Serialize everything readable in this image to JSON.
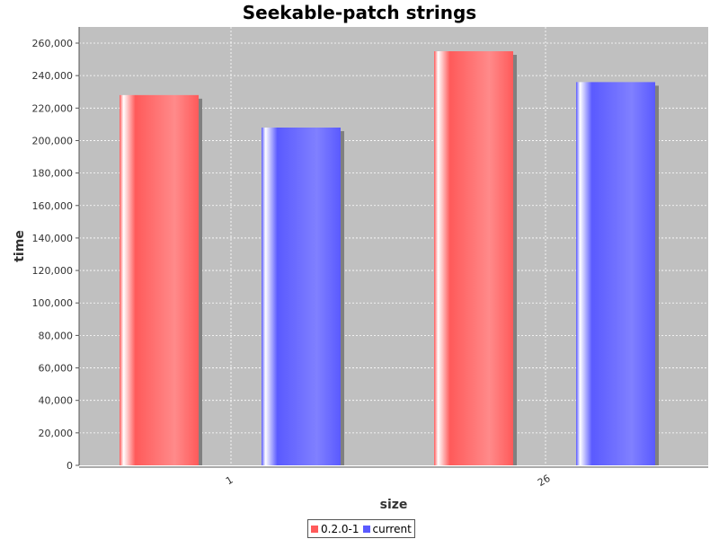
{
  "chart_data": {
    "type": "bar",
    "title": "Seekable-patch strings",
    "xlabel": "size",
    "ylabel": "time",
    "categories": [
      "1",
      "26"
    ],
    "series": [
      {
        "name": "0.2.0-1",
        "values": [
          228000,
          255000
        ],
        "color": "#ff5a5a"
      },
      {
        "name": "current",
        "values": [
          208000,
          236000
        ],
        "color": "#5a5aff"
      }
    ],
    "ylim": [
      0,
      260000
    ],
    "yticks": [
      0,
      20000,
      40000,
      60000,
      80000,
      100000,
      120000,
      140000,
      160000,
      180000,
      200000,
      220000,
      240000,
      260000
    ],
    "ytick_labels": [
      "0",
      "20,000",
      "40,000",
      "60,000",
      "80,000",
      "100,000",
      "120,000",
      "140,000",
      "160,000",
      "180,000",
      "200,000",
      "220,000",
      "240,000",
      "260,000"
    ],
    "grid": true,
    "legend_position": "bottom",
    "plot_background": "#c0c0c0"
  }
}
